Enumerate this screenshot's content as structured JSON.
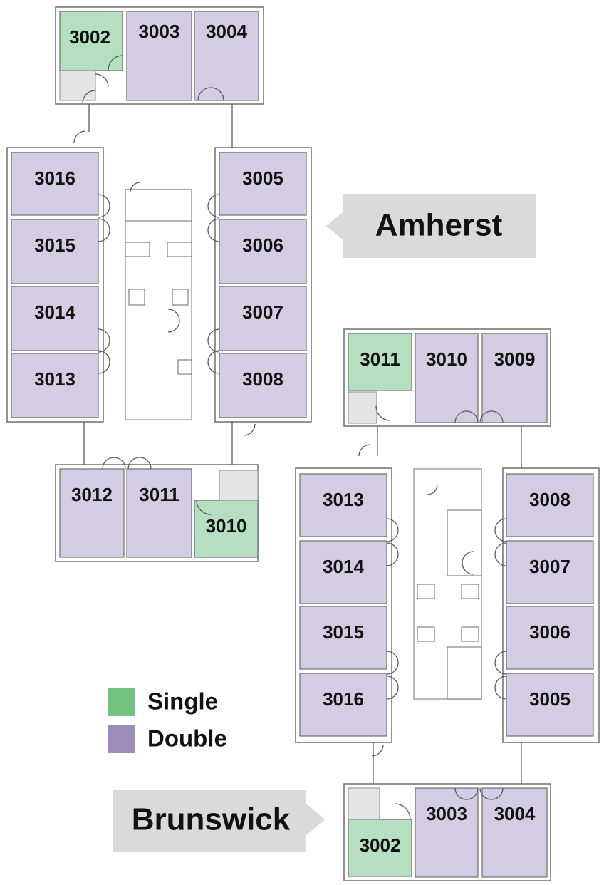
{
  "colors": {
    "single": "#b5dfc0",
    "double": "#d3cce2",
    "legend_single": "#74c27e",
    "legend_double": "#9e8cba"
  },
  "legend": {
    "single_label": "Single",
    "double_label": "Double"
  },
  "buildings": [
    {
      "name": "Amherst",
      "rooms": [
        {
          "id": "3002",
          "type": "single"
        },
        {
          "id": "3003",
          "type": "double"
        },
        {
          "id": "3004",
          "type": "double"
        },
        {
          "id": "3005",
          "type": "double"
        },
        {
          "id": "3006",
          "type": "double"
        },
        {
          "id": "3007",
          "type": "double"
        },
        {
          "id": "3008",
          "type": "double"
        },
        {
          "id": "3010",
          "type": "single"
        },
        {
          "id": "3011",
          "type": "double"
        },
        {
          "id": "3012",
          "type": "double"
        },
        {
          "id": "3013",
          "type": "double"
        },
        {
          "id": "3014",
          "type": "double"
        },
        {
          "id": "3015",
          "type": "double"
        },
        {
          "id": "3016",
          "type": "double"
        }
      ]
    },
    {
      "name": "Brunswick",
      "rooms": [
        {
          "id": "3011",
          "type": "single"
        },
        {
          "id": "3010",
          "type": "double"
        },
        {
          "id": "3009",
          "type": "double"
        },
        {
          "id": "3008",
          "type": "double"
        },
        {
          "id": "3007",
          "type": "double"
        },
        {
          "id": "3006",
          "type": "double"
        },
        {
          "id": "3005",
          "type": "double"
        },
        {
          "id": "3013",
          "type": "double"
        },
        {
          "id": "3014",
          "type": "double"
        },
        {
          "id": "3015",
          "type": "double"
        },
        {
          "id": "3016",
          "type": "double"
        },
        {
          "id": "3002",
          "type": "single"
        },
        {
          "id": "3003",
          "type": "double"
        },
        {
          "id": "3004",
          "type": "double"
        }
      ]
    }
  ]
}
